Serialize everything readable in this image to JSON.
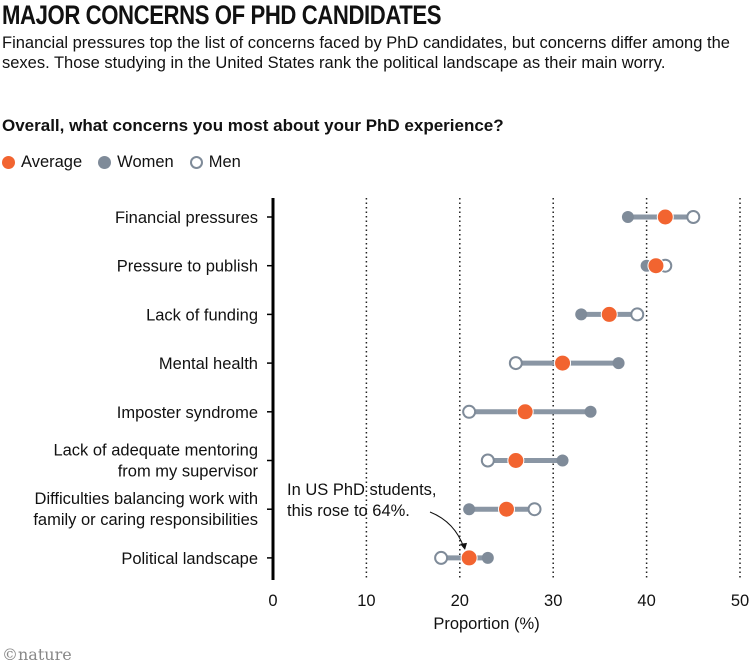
{
  "title": "MAJOR CONCERNS OF PHD CANDIDATES",
  "subtitle": "Financial pressures top the list of concerns faced by PhD candidates, but concerns differ among the sexes. Those studying in the United States rank the political landscape as their main worry.",
  "question": "Overall, what concerns you most about your PhD experience?",
  "logo": "©nature",
  "colors": {
    "average": "#f26430",
    "women": "#7f8b99",
    "men": "#7f8b99",
    "connector": "#8a96a4"
  },
  "legend": [
    {
      "label": "Average",
      "style": "filled-orange"
    },
    {
      "label": "Women",
      "style": "filled-gray"
    },
    {
      "label": "Men",
      "style": "hollow-gray"
    }
  ],
  "chart_data": {
    "type": "dumbbell",
    "xlabel": "Proportion (%)",
    "xlim": [
      0,
      50
    ],
    "xticks": [
      "0",
      "10",
      "20",
      "30",
      "40",
      "50"
    ],
    "grid": "vertical dotted",
    "legend_placement": "top-left",
    "categories": [
      "Financial pressures",
      "Pressure to publish",
      "Lack of funding",
      "Mental health",
      "Imposter syndrome",
      "Lack of adequate mentoring|from my supervisor",
      "Difficulties balancing work with|family or caring responsibilities",
      "Political landscape"
    ],
    "series": [
      {
        "name": "Average",
        "values": [
          42,
          41,
          36,
          31,
          27,
          26,
          25,
          21
        ]
      },
      {
        "name": "Women",
        "values": [
          38,
          40,
          33,
          37,
          34,
          31,
          21,
          23
        ]
      },
      {
        "name": "Men",
        "values": [
          45,
          42,
          39,
          26,
          21,
          23,
          28,
          18
        ]
      }
    ],
    "annotation": {
      "text": "In US PhD students,|this rose to 64%.",
      "category": "Political landscape"
    }
  }
}
